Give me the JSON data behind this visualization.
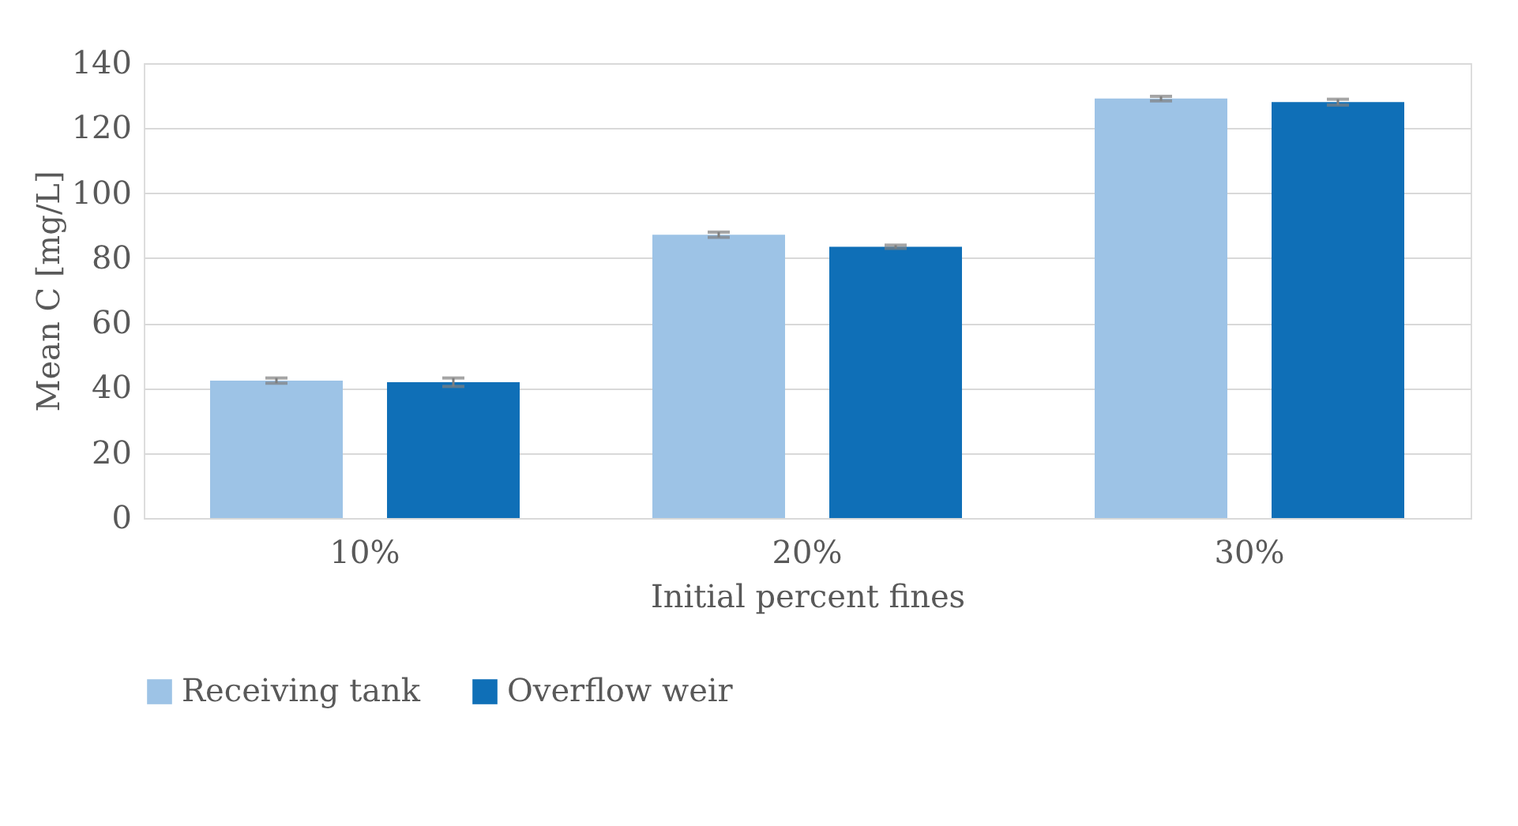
{
  "chart_data": {
    "type": "bar",
    "xlabel": "Initial percent fines",
    "ylabel": "Mean C [mg/L]",
    "categories": [
      "10%",
      "20%",
      "30%"
    ],
    "series": [
      {
        "name": "Receiving tank",
        "color": "#9dc3e6",
        "values": [
          42.3,
          87.2,
          129.1
        ],
        "errors": [
          0.8,
          0.8,
          0.7
        ]
      },
      {
        "name": "Overflow weir",
        "color": "#0f6fb7",
        "values": [
          41.8,
          83.5,
          128.0
        ],
        "errors": [
          1.3,
          0.5,
          0.9
        ]
      }
    ],
    "ylim": [
      0,
      140
    ],
    "yticks": [
      0,
      20,
      40,
      60,
      80,
      100,
      120,
      140
    ],
    "grid": "y",
    "legend": "bottom"
  }
}
